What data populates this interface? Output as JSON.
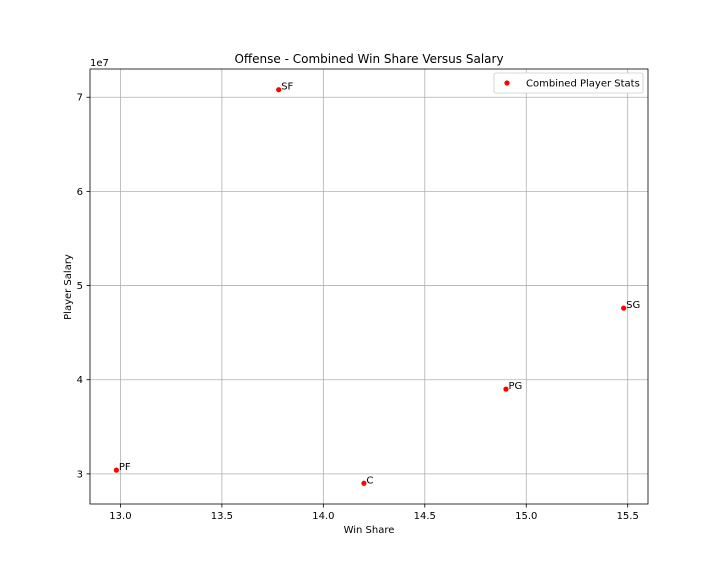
{
  "chart_data": {
    "type": "scatter",
    "title": "Offense - Combined Win Share Versus Salary",
    "xlabel": "Win Share",
    "ylabel": "Player Salary",
    "y_offset_label": "1e7",
    "xlim": [
      12.85,
      15.6
    ],
    "ylim": [
      26800000.0,
      73000000.0
    ],
    "x_ticks": [
      13.0,
      13.5,
      14.0,
      14.5,
      15.0,
      15.5
    ],
    "x_tick_labels": [
      "13.0",
      "13.5",
      "14.0",
      "14.5",
      "15.0",
      "15.5"
    ],
    "y_ticks": [
      30000000.0,
      40000000.0,
      50000000.0,
      60000000.0,
      70000000.0
    ],
    "y_tick_labels": [
      "3",
      "4",
      "5",
      "6",
      "7"
    ],
    "grid": true,
    "legend_position": "top-right",
    "series": [
      {
        "name": "Combined Player Stats",
        "color": "#ff0000",
        "points": [
          {
            "label": "SF",
            "x": 13.78,
            "y": 70800000.0
          },
          {
            "label": "SG",
            "x": 15.48,
            "y": 47600000.0
          },
          {
            "label": "PG",
            "x": 14.9,
            "y": 39000000.0
          },
          {
            "label": "PF",
            "x": 12.98,
            "y": 30400000.0
          },
          {
            "label": "C",
            "x": 14.2,
            "y": 29000000.0
          }
        ]
      }
    ]
  }
}
